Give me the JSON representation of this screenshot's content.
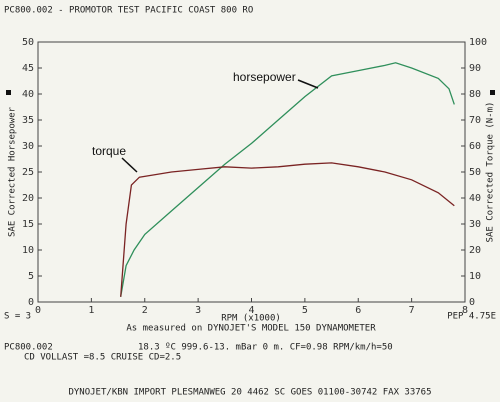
{
  "header": {
    "title": "PC800.002 - PROMOTOR TEST  PACIFIC COAST 800     RO"
  },
  "chart_data": {
    "type": "line",
    "xlabel": "RPM (x1000)",
    "ylabel": "SAE Corrected Horsepower",
    "y2label": "SAE Corrected Torque (N-m)",
    "xlim": [
      0,
      8
    ],
    "xticks": [
      0,
      1,
      2,
      3,
      4,
      5,
      6,
      7,
      8
    ],
    "ylim": [
      0,
      50
    ],
    "yticks": [
      0,
      5,
      10,
      15,
      20,
      25,
      30,
      35,
      40,
      45,
      50
    ],
    "y2lim": [
      0,
      100
    ],
    "y2ticks": [
      0,
      10,
      20,
      30,
      40,
      50,
      60,
      70,
      80,
      90,
      100
    ],
    "series": [
      {
        "name": "horsepower",
        "color": "#2f8f5b",
        "x": [
          1.55,
          1.65,
          1.8,
          2.0,
          2.5,
          3.0,
          3.5,
          4.0,
          4.5,
          5.0,
          5.5,
          6.0,
          6.5,
          6.7,
          7.0,
          7.5,
          7.7,
          7.8
        ],
        "values": [
          1,
          7,
          10,
          13,
          17.5,
          22,
          26.5,
          30.5,
          35,
          39.5,
          43.5,
          44.5,
          45.5,
          46,
          45,
          43,
          41,
          38
        ]
      },
      {
        "name": "torque",
        "color": "#7a2323",
        "axis": "y2",
        "x": [
          1.55,
          1.65,
          1.75,
          1.9,
          2.2,
          2.5,
          3.0,
          3.5,
          4.0,
          4.5,
          5.0,
          5.5,
          6.0,
          6.5,
          7.0,
          7.5,
          7.8
        ],
        "values": [
          2,
          30,
          45,
          48,
          49,
          50,
          51,
          52,
          51.5,
          52,
          53,
          53.5,
          52,
          50,
          47,
          42,
          37
        ]
      }
    ]
  },
  "footer": {
    "left_note": "S = 3",
    "right_note": "PEP 4.75E",
    "measured": "As measured on DYNOJET'S MODEL 150 DYNAMOMETER",
    "run_id": "PC800.002",
    "conditions": "18.3 ºC  999.6-13. mBar  0 m.  CF=0.98  RPM/km/h=50",
    "cd": "CD VOLLAST =8.5  CRUISE CD=2.5",
    "address": "DYNOJET/KBN IMPORT PLESMANWEG 20 4462 SC GOES  01100-30742  FAX 33765"
  }
}
